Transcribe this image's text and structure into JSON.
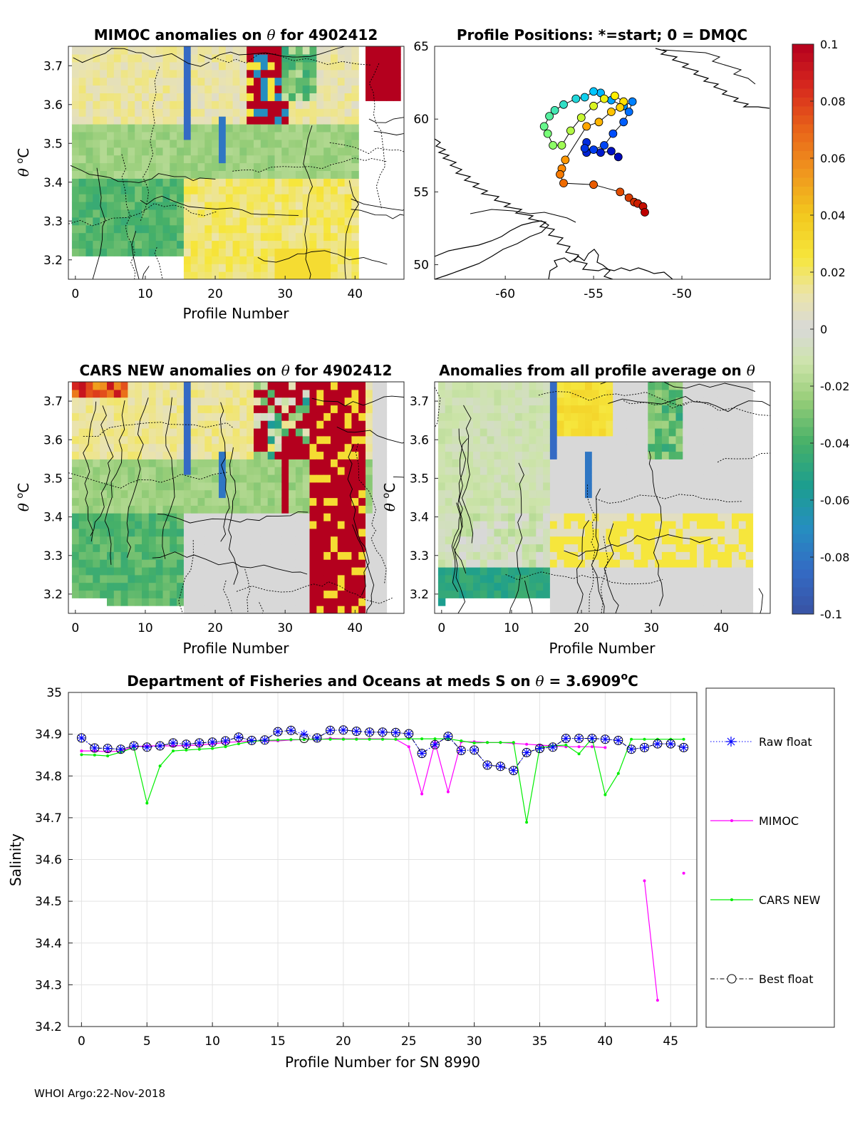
{
  "footer": "WHOI Argo:22-Nov-2018",
  "chart_data": [
    {
      "type": "heatmap",
      "title_parts": [
        "MIMOC anomalies on ",
        "θ",
        "  for 4902412"
      ],
      "xlabel": "Profile Number",
      "ylabel_parts": [
        "θ ",
        "o",
        "C"
      ],
      "xlim": [
        -1,
        47
      ],
      "ylim": [
        3.15,
        3.75
      ],
      "xticks": [
        "0",
        "10",
        "20",
        "30",
        "40"
      ],
      "yticks": [
        "3.2",
        "3.3",
        "3.4",
        "3.5",
        "3.6",
        "3.7"
      ]
    },
    {
      "type": "scatter",
      "title": "Profile Positions: *=start; 0 = DMQC",
      "xlim": [
        -64,
        -45
      ],
      "ylim": [
        49,
        65
      ],
      "xticks": [
        "-60",
        "-55",
        "-50"
      ],
      "yticks": [
        "50",
        "55",
        "60",
        "65"
      ],
      "track_lon": [
        -53.3,
        -53.6,
        -54.0,
        -54.6,
        -55.4,
        -55.4,
        -55.5,
        -55.0,
        -54.4,
        -53.9,
        -53.3,
        -53.0,
        -52.8,
        -53.3,
        -54.0,
        -54.6,
        -55.0,
        -55.5,
        -56.0,
        -56.7,
        -57.2,
        -57.5,
        -57.8,
        -57.6,
        -57.3,
        -56.8,
        -56.3,
        -55.7,
        -55.0,
        -54.4,
        -53.8,
        -53.3,
        -53.5,
        -54.0,
        -54.7,
        -55.4,
        -56.6,
        -56.8,
        -56.9,
        -56.7,
        -55.0,
        -53.5,
        -53.0,
        -52.7,
        -52.5,
        -52.2,
        -52.1
      ],
      "track_lat": [
        57.2,
        57.4,
        57.8,
        57.7,
        57.7,
        58.4,
        58.0,
        57.9,
        58.2,
        59.0,
        59.8,
        60.5,
        61.2,
        60.9,
        61.3,
        61.8,
        61.9,
        61.5,
        61.4,
        61.0,
        60.6,
        60.2,
        59.5,
        59.0,
        58.2,
        58.2,
        59.2,
        60.1,
        60.9,
        61.4,
        61.6,
        61.2,
        60.8,
        60.5,
        59.8,
        59.5,
        57.2,
        56.6,
        56.2,
        55.6,
        55.5,
        55.0,
        54.6,
        54.3,
        54.2,
        54.0,
        53.6
      ]
    },
    {
      "type": "heatmap",
      "title_parts": [
        "CARS NEW anomalies on ",
        "θ",
        " for 4902412"
      ],
      "xlabel": "Profile Number",
      "ylabel_parts": [
        "θ ",
        "o",
        "C"
      ],
      "xlim": [
        -1,
        47
      ],
      "ylim": [
        3.15,
        3.75
      ],
      "xticks": [
        "0",
        "10",
        "20",
        "30",
        "40"
      ],
      "yticks": [
        "3.2",
        "3.3",
        "3.4",
        "3.5",
        "3.6",
        "3.7"
      ]
    },
    {
      "type": "heatmap",
      "title_parts": [
        "Anomalies from all profile average on ",
        "θ"
      ],
      "xlabel": "Profile Number",
      "ylabel_parts": [
        "θ ",
        "o",
        "C"
      ],
      "xlim": [
        -1,
        47
      ],
      "ylim": [
        3.15,
        3.75
      ],
      "xticks": [
        "0",
        "10",
        "20",
        "30",
        "40"
      ],
      "yticks": [
        "3.2",
        "3.3",
        "3.4",
        "3.5",
        "3.6",
        "3.7"
      ]
    },
    {
      "type": "line",
      "title_parts": [
        "Department of Fisheries and Oceans at meds S on ",
        "θ",
        " = 3.6909",
        "o",
        "C"
      ],
      "xlabel": "Profile Number for SN 8990",
      "ylabel": "Salinity",
      "xlim": [
        -1,
        47
      ],
      "ylim": [
        34.2,
        35.0
      ],
      "xticks": [
        "0",
        "5",
        "10",
        "15",
        "20",
        "25",
        "30",
        "35",
        "40",
        "45"
      ],
      "yticks": [
        "34.2",
        "34.3",
        "34.4",
        "34.5",
        "34.6",
        "34.7",
        "34.8",
        "34.9",
        "35"
      ],
      "grid": true,
      "legend_position": "outside-right",
      "x": [
        0,
        1,
        2,
        3,
        4,
        5,
        6,
        7,
        8,
        9,
        10,
        11,
        12,
        13,
        14,
        15,
        16,
        17,
        18,
        19,
        20,
        21,
        22,
        23,
        24,
        25,
        26,
        27,
        28,
        29,
        30,
        31,
        32,
        33,
        34,
        35,
        36,
        37,
        38,
        39,
        40,
        41,
        42,
        43,
        44,
        45,
        46
      ],
      "series": [
        {
          "name": "Raw float",
          "color": "#0000ff",
          "values": [
            34.891,
            34.867,
            34.866,
            34.864,
            34.872,
            34.869,
            34.872,
            34.879,
            34.876,
            34.879,
            34.881,
            34.884,
            34.893,
            34.885,
            34.886,
            34.906,
            34.909,
            34.9,
            34.891,
            34.909,
            34.91,
            34.907,
            34.905,
            34.905,
            34.904,
            34.901,
            34.854,
            34.875,
            34.895,
            34.861,
            34.862,
            34.826,
            34.823,
            34.813,
            34.856,
            34.866,
            34.869,
            34.89,
            34.89,
            34.89,
            34.888,
            34.885,
            34.864,
            34.868,
            34.877,
            34.877,
            34.868
          ]
        },
        {
          "name": "MIMOC",
          "color": "#ff00ff",
          "values": [
            34.86,
            34.86,
            34.858,
            34.86,
            34.87,
            34.872,
            34.872,
            34.872,
            34.873,
            34.874,
            34.877,
            34.88,
            34.882,
            34.884,
            34.884,
            34.884,
            34.886,
            34.887,
            34.887,
            34.89,
            34.889,
            34.889,
            34.889,
            34.889,
            34.888,
            34.87,
            34.757,
            34.88,
            34.762,
            34.882,
            34.882,
            34.88,
            34.88,
            34.878,
            34.876,
            34.874,
            34.872,
            34.87,
            34.87,
            34.87,
            34.868,
            null,
            null,
            34.549,
            34.263,
            null,
            34.567
          ]
        },
        {
          "name": "CARS NEW",
          "color": "#00ee00",
          "values": [
            34.851,
            34.85,
            34.848,
            34.857,
            34.868,
            34.735,
            34.824,
            34.86,
            34.862,
            34.864,
            34.866,
            34.87,
            34.877,
            34.883,
            34.885,
            34.886,
            34.887,
            34.887,
            34.888,
            34.888,
            34.888,
            34.888,
            34.888,
            34.888,
            34.888,
            34.889,
            34.889,
            34.889,
            34.889,
            34.884,
            34.879,
            34.88,
            34.88,
            34.88,
            34.689,
            34.868,
            34.872,
            34.874,
            34.853,
            34.89,
            34.755,
            34.806,
            34.888,
            34.888,
            34.888,
            34.888,
            34.888
          ]
        },
        {
          "name": "Best float",
          "color": "#000000",
          "values": [
            34.891,
            34.867,
            34.866,
            34.864,
            34.872,
            34.869,
            34.872,
            34.879,
            34.876,
            34.879,
            34.881,
            34.884,
            34.893,
            34.885,
            34.886,
            34.906,
            34.909,
            34.89,
            34.891,
            34.909,
            34.91,
            34.907,
            34.905,
            34.905,
            34.904,
            34.901,
            34.854,
            34.875,
            34.895,
            34.861,
            34.862,
            34.826,
            34.823,
            34.813,
            34.856,
            34.866,
            34.869,
            34.89,
            34.89,
            34.89,
            34.888,
            34.885,
            34.864,
            34.868,
            34.877,
            34.877,
            34.868
          ]
        }
      ]
    }
  ],
  "colorbar": {
    "ticks": [
      "0.1",
      "0.08",
      "0.06",
      "0.04",
      "0.02",
      "0",
      "-0.02",
      "-0.04",
      "-0.06",
      "-0.08",
      "-0.1"
    ],
    "range": [
      -0.1,
      0.1
    ]
  }
}
